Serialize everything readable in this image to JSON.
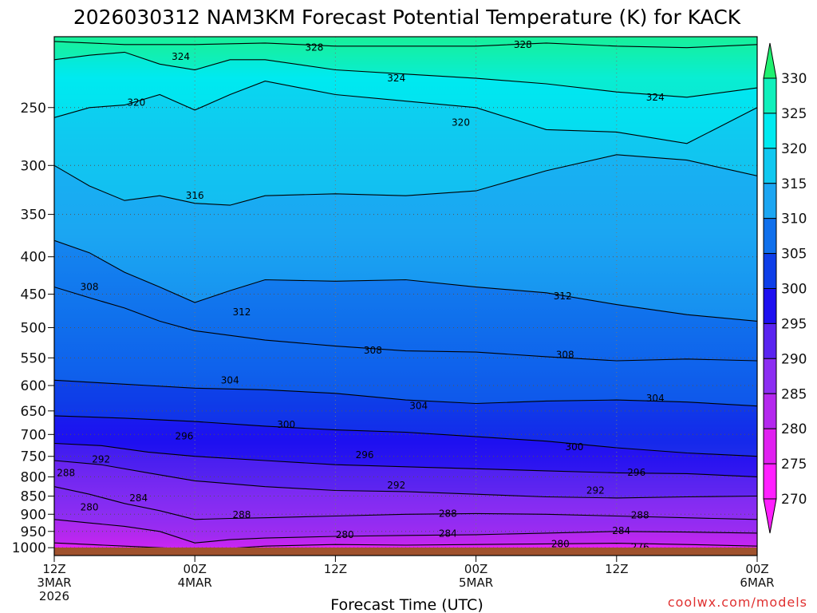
{
  "chart_data": {
    "type": "heatmap",
    "title": "2026030312 NAM3KM Forecast Potential Temperature (K) for KACK",
    "xlabel": "Forecast Time (UTC)",
    "ylabel": "",
    "credit": "coolwx.com/models",
    "x_ticks": [
      {
        "hour": 0,
        "line1": "12Z",
        "line2": "3MAR",
        "line3": "2026"
      },
      {
        "hour": 12,
        "line1": "00Z",
        "line2": "4MAR",
        "line3": ""
      },
      {
        "hour": 24,
        "line1": "12Z",
        "line2": "",
        "line3": ""
      },
      {
        "hour": 36,
        "line1": "00Z",
        "line2": "5MAR",
        "line3": ""
      },
      {
        "hour": 48,
        "line1": "12Z",
        "line2": "",
        "line3": ""
      },
      {
        "hour": 60,
        "line1": "00Z",
        "line2": "6MAR",
        "line3": ""
      }
    ],
    "xlim": [
      0,
      60
    ],
    "y_ticks": [
      "250",
      "300",
      "350",
      "400",
      "450",
      "500",
      "550",
      "600",
      "650",
      "700",
      "750",
      "800",
      "850",
      "900",
      "950",
      "1000"
    ],
    "y_tick_values": [
      250,
      300,
      350,
      400,
      450,
      500,
      550,
      600,
      650,
      700,
      750,
      800,
      850,
      900,
      950,
      1000
    ],
    "ylim_hpa": [
      200,
      1025
    ],
    "colorbar": {
      "labels": [
        "330",
        "325",
        "320",
        "315",
        "310",
        "305",
        "300",
        "295",
        "290",
        "285",
        "280",
        "275",
        "270"
      ],
      "levels": [
        270,
        275,
        280,
        285,
        290,
        295,
        300,
        305,
        310,
        315,
        320,
        325,
        330
      ],
      "colors": [
        "#ff20ff",
        "#e020f0",
        "#b428ee",
        "#8c2ef2",
        "#5a24f0",
        "#1e10f0",
        "#0e3ee8",
        "#1070ec",
        "#1ca6f2",
        "#10c8f0",
        "#00eaf0",
        "#10f0bc",
        "#20f070"
      ]
    },
    "series": [
      {
        "name": "theta_276",
        "values": [
          272,
          273,
          274,
          275,
          275,
          276,
          276,
          276,
          276,
          276,
          276,
          276,
          276
        ]
      },
      {
        "name": "theta_288",
        "values": [
          279,
          281,
          283,
          284,
          286,
          287,
          288,
          288,
          288,
          288,
          288,
          288,
          288
        ]
      },
      {
        "name": "theta_300",
        "values": [
          295,
          296,
          297,
          298,
          299,
          300,
          300,
          300,
          300,
          300,
          300,
          300,
          300
        ]
      },
      {
        "name": "theta_312",
        "values": [
          307,
          308,
          309,
          310,
          311,
          312,
          312,
          312,
          312,
          312,
          312,
          312,
          312
        ]
      },
      {
        "name": "theta_324",
        "values": [
          318,
          319,
          320,
          321,
          322,
          323,
          324,
          324,
          324,
          324,
          324,
          324,
          324
        ]
      }
    ],
    "series_pressure_hpa": [
      1000,
      950,
      900,
      850,
      800,
      750,
      700,
      650,
      600,
      500,
      400,
      300,
      250
    ],
    "contours": [
      {
        "label": "276",
        "pts": [
          [
            0,
            1023
          ],
          [
            6,
            1020
          ],
          [
            12,
            1017
          ],
          [
            18,
            1015
          ],
          [
            24,
            1016
          ],
          [
            30,
            1015
          ],
          [
            36,
            1014
          ],
          [
            42,
            1012
          ],
          [
            48,
            1010
          ],
          [
            54,
            1012
          ],
          [
            60,
            1014
          ]
        ]
      },
      {
        "label": "280",
        "pts": [
          [
            0,
            985
          ],
          [
            3,
            990
          ],
          [
            6,
            995
          ],
          [
            9,
            1000
          ],
          [
            12,
            1005
          ],
          [
            15,
            1002
          ],
          [
            18,
            995
          ],
          [
            24,
            990
          ],
          [
            30,
            992
          ],
          [
            36,
            990
          ],
          [
            42,
            988
          ],
          [
            48,
            986
          ],
          [
            54,
            990
          ],
          [
            60,
            995
          ]
        ]
      },
      {
        "label": "284",
        "pts": [
          [
            0,
            915
          ],
          [
            3,
            925
          ],
          [
            6,
            935
          ],
          [
            9,
            950
          ],
          [
            12,
            985
          ],
          [
            15,
            975
          ],
          [
            18,
            970
          ],
          [
            24,
            965
          ],
          [
            30,
            962
          ],
          [
            36,
            960
          ],
          [
            42,
            955
          ],
          [
            48,
            950
          ],
          [
            54,
            952
          ],
          [
            60,
            955
          ]
        ]
      },
      {
        "label": "288",
        "pts": [
          [
            0,
            825
          ],
          [
            3,
            845
          ],
          [
            6,
            870
          ],
          [
            9,
            890
          ],
          [
            12,
            915
          ],
          [
            15,
            912
          ],
          [
            18,
            910
          ],
          [
            24,
            905
          ],
          [
            30,
            900
          ],
          [
            36,
            898
          ],
          [
            42,
            900
          ],
          [
            48,
            905
          ],
          [
            54,
            910
          ],
          [
            60,
            915
          ]
        ]
      },
      {
        "label": "292",
        "pts": [
          [
            0,
            760
          ],
          [
            4,
            770
          ],
          [
            8,
            790
          ],
          [
            12,
            810
          ],
          [
            18,
            825
          ],
          [
            24,
            835
          ],
          [
            30,
            838
          ],
          [
            36,
            845
          ],
          [
            42,
            852
          ],
          [
            48,
            855
          ],
          [
            54,
            852
          ],
          [
            60,
            850
          ]
        ]
      },
      {
        "label": "296",
        "pts": [
          [
            0,
            720
          ],
          [
            4,
            725
          ],
          [
            8,
            740
          ],
          [
            12,
            750
          ],
          [
            18,
            760
          ],
          [
            24,
            770
          ],
          [
            30,
            775
          ],
          [
            36,
            780
          ],
          [
            42,
            785
          ],
          [
            48,
            790
          ],
          [
            54,
            792
          ],
          [
            60,
            800
          ]
        ]
      },
      {
        "label": "300",
        "pts": [
          [
            0,
            660
          ],
          [
            6,
            665
          ],
          [
            12,
            672
          ],
          [
            18,
            682
          ],
          [
            24,
            690
          ],
          [
            30,
            695
          ],
          [
            36,
            705
          ],
          [
            42,
            715
          ],
          [
            48,
            730
          ],
          [
            54,
            742
          ],
          [
            60,
            750
          ]
        ]
      },
      {
        "label": "304",
        "pts": [
          [
            0,
            590
          ],
          [
            4,
            595
          ],
          [
            8,
            600
          ],
          [
            12,
            605
          ],
          [
            18,
            608
          ],
          [
            24,
            615
          ],
          [
            30,
            628
          ],
          [
            36,
            635
          ],
          [
            42,
            630
          ],
          [
            48,
            628
          ],
          [
            54,
            632
          ],
          [
            60,
            640
          ]
        ]
      },
      {
        "label": "308",
        "pts": [
          [
            0,
            440
          ],
          [
            3,
            455
          ],
          [
            6,
            470
          ],
          [
            9,
            490
          ],
          [
            12,
            505
          ],
          [
            18,
            520
          ],
          [
            24,
            530
          ],
          [
            30,
            538
          ],
          [
            36,
            540
          ],
          [
            42,
            548
          ],
          [
            48,
            555
          ],
          [
            54,
            552
          ],
          [
            60,
            555
          ]
        ]
      },
      {
        "label": "312",
        "pts": [
          [
            0,
            380
          ],
          [
            3,
            395
          ],
          [
            6,
            420
          ],
          [
            9,
            440
          ],
          [
            12,
            462
          ],
          [
            15,
            445
          ],
          [
            18,
            430
          ],
          [
            24,
            432
          ],
          [
            30,
            430
          ],
          [
            36,
            440
          ],
          [
            42,
            448
          ],
          [
            48,
            465
          ],
          [
            54,
            480
          ],
          [
            60,
            490
          ]
        ]
      },
      {
        "label": "316",
        "pts": [
          [
            0,
            300
          ],
          [
            3,
            320
          ],
          [
            6,
            335
          ],
          [
            9,
            330
          ],
          [
            12,
            338
          ],
          [
            15,
            340
          ],
          [
            18,
            330
          ],
          [
            24,
            328
          ],
          [
            30,
            330
          ],
          [
            36,
            325
          ],
          [
            42,
            305
          ],
          [
            48,
            290
          ],
          [
            54,
            295
          ],
          [
            60,
            310
          ]
        ]
      },
      {
        "label": "320",
        "pts": [
          [
            0,
            258
          ],
          [
            3,
            250
          ],
          [
            6,
            248
          ],
          [
            9,
            240
          ],
          [
            12,
            252
          ],
          [
            15,
            240
          ],
          [
            18,
            230
          ],
          [
            24,
            240
          ],
          [
            30,
            245
          ],
          [
            36,
            250
          ],
          [
            42,
            268
          ],
          [
            48,
            270
          ],
          [
            54,
            280
          ],
          [
            60,
            250
          ]
        ]
      },
      {
        "label": "324",
        "pts": [
          [
            0,
            215
          ],
          [
            3,
            212
          ],
          [
            6,
            210
          ],
          [
            9,
            218
          ],
          [
            12,
            222
          ],
          [
            15,
            215
          ],
          [
            18,
            215
          ],
          [
            24,
            222
          ],
          [
            30,
            225
          ],
          [
            36,
            228
          ],
          [
            42,
            232
          ],
          [
            48,
            238
          ],
          [
            54,
            242
          ],
          [
            60,
            235
          ]
        ]
      },
      {
        "label": "328",
        "pts": [
          [
            0,
            203
          ],
          [
            6,
            205
          ],
          [
            12,
            205
          ],
          [
            18,
            204
          ],
          [
            24,
            206
          ],
          [
            30,
            206
          ],
          [
            36,
            206
          ],
          [
            42,
            204
          ],
          [
            48,
            206
          ],
          [
            54,
            207
          ],
          [
            60,
            205
          ]
        ]
      }
    ],
    "contour_labels": [
      {
        "text": "324",
        "x": 10.8,
        "p": 213
      },
      {
        "text": "328",
        "x": 22.2,
        "p": 207
      },
      {
        "text": "328",
        "x": 40.0,
        "p": 205
      },
      {
        "text": "324",
        "x": 29.2,
        "p": 228
      },
      {
        "text": "324",
        "x": 51.3,
        "p": 242
      },
      {
        "text": "320",
        "x": 7.0,
        "p": 246
      },
      {
        "text": "320",
        "x": 34.7,
        "p": 262
      },
      {
        "text": "316",
        "x": 12.0,
        "p": 330
      },
      {
        "text": "308",
        "x": 3.0,
        "p": 440
      },
      {
        "text": "312",
        "x": 16.0,
        "p": 476
      },
      {
        "text": "312",
        "x": 43.4,
        "p": 453
      },
      {
        "text": "308",
        "x": 27.2,
        "p": 537
      },
      {
        "text": "308",
        "x": 43.6,
        "p": 545
      },
      {
        "text": "304",
        "x": 15.0,
        "p": 590
      },
      {
        "text": "304",
        "x": 31.1,
        "p": 640
      },
      {
        "text": "304",
        "x": 51.3,
        "p": 625
      },
      {
        "text": "300",
        "x": 19.8,
        "p": 679
      },
      {
        "text": "300",
        "x": 44.4,
        "p": 728
      },
      {
        "text": "296",
        "x": 11.1,
        "p": 704
      },
      {
        "text": "296",
        "x": 26.5,
        "p": 747
      },
      {
        "text": "296",
        "x": 49.7,
        "p": 789
      },
      {
        "text": "292",
        "x": 4.0,
        "p": 757
      },
      {
        "text": "292",
        "x": 29.2,
        "p": 822
      },
      {
        "text": "292",
        "x": 46.2,
        "p": 835
      },
      {
        "text": "288",
        "x": 1.0,
        "p": 790
      },
      {
        "text": "288",
        "x": 16.0,
        "p": 902
      },
      {
        "text": "288",
        "x": 33.6,
        "p": 898
      },
      {
        "text": "288",
        "x": 50.0,
        "p": 903
      },
      {
        "text": "284",
        "x": 7.2,
        "p": 855
      },
      {
        "text": "284",
        "x": 33.6,
        "p": 957
      },
      {
        "text": "284",
        "x": 48.4,
        "p": 948
      },
      {
        "text": "280",
        "x": 3.0,
        "p": 880
      },
      {
        "text": "280",
        "x": 24.8,
        "p": 960
      },
      {
        "text": "280",
        "x": 43.2,
        "p": 988
      },
      {
        "text": "276",
        "x": 50.0,
        "p": 998
      }
    ]
  }
}
